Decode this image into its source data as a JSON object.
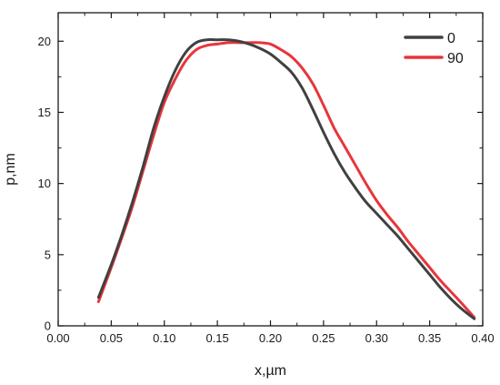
{
  "chart_data": {
    "type": "line",
    "xlabel": "x,µm",
    "ylabel": "p,nm",
    "xlim": [
      0.0,
      0.4
    ],
    "ylim": [
      0,
      22
    ],
    "xticks": [
      "0.00",
      "0.05",
      "0.10",
      "0.15",
      "0.20",
      "0.25",
      "0.30",
      "0.35",
      "0.40"
    ],
    "yticks": [
      "0",
      "5",
      "10",
      "15",
      "20"
    ],
    "grid": false,
    "legend_position": "top-right",
    "series": [
      {
        "name": "0",
        "color": "#404040",
        "x": [
          0.038,
          0.05,
          0.06,
          0.07,
          0.08,
          0.09,
          0.1,
          0.11,
          0.12,
          0.13,
          0.14,
          0.15,
          0.16,
          0.17,
          0.18,
          0.19,
          0.2,
          0.21,
          0.22,
          0.23,
          0.24,
          0.25,
          0.26,
          0.27,
          0.28,
          0.29,
          0.3,
          0.31,
          0.32,
          0.33,
          0.34,
          0.35,
          0.36,
          0.37,
          0.38,
          0.392
        ],
        "values": [
          2.0,
          4.3,
          6.4,
          8.7,
          11.2,
          13.9,
          16.1,
          17.9,
          19.2,
          19.9,
          20.1,
          20.1,
          20.1,
          20.0,
          19.8,
          19.5,
          19.1,
          18.5,
          17.8,
          16.7,
          15.2,
          13.6,
          12.1,
          10.8,
          9.7,
          8.7,
          7.9,
          7.1,
          6.3,
          5.4,
          4.5,
          3.6,
          2.7,
          1.9,
          1.2,
          0.5
        ]
      },
      {
        "name": "90",
        "color": "#e8353b",
        "x": [
          0.038,
          0.05,
          0.06,
          0.07,
          0.08,
          0.09,
          0.1,
          0.11,
          0.12,
          0.13,
          0.14,
          0.15,
          0.16,
          0.17,
          0.18,
          0.19,
          0.2,
          0.21,
          0.22,
          0.23,
          0.24,
          0.25,
          0.26,
          0.27,
          0.28,
          0.29,
          0.3,
          0.31,
          0.32,
          0.33,
          0.34,
          0.35,
          0.36,
          0.37,
          0.38,
          0.392
        ],
        "values": [
          1.7,
          4.1,
          6.2,
          8.4,
          10.9,
          13.4,
          15.7,
          17.3,
          18.6,
          19.4,
          19.7,
          19.8,
          19.9,
          19.9,
          19.9,
          19.9,
          19.8,
          19.4,
          18.9,
          18.1,
          17.0,
          15.5,
          13.9,
          12.6,
          11.3,
          10.0,
          8.8,
          7.8,
          6.9,
          5.9,
          5.0,
          4.1,
          3.2,
          2.4,
          1.6,
          0.6
        ]
      }
    ]
  }
}
